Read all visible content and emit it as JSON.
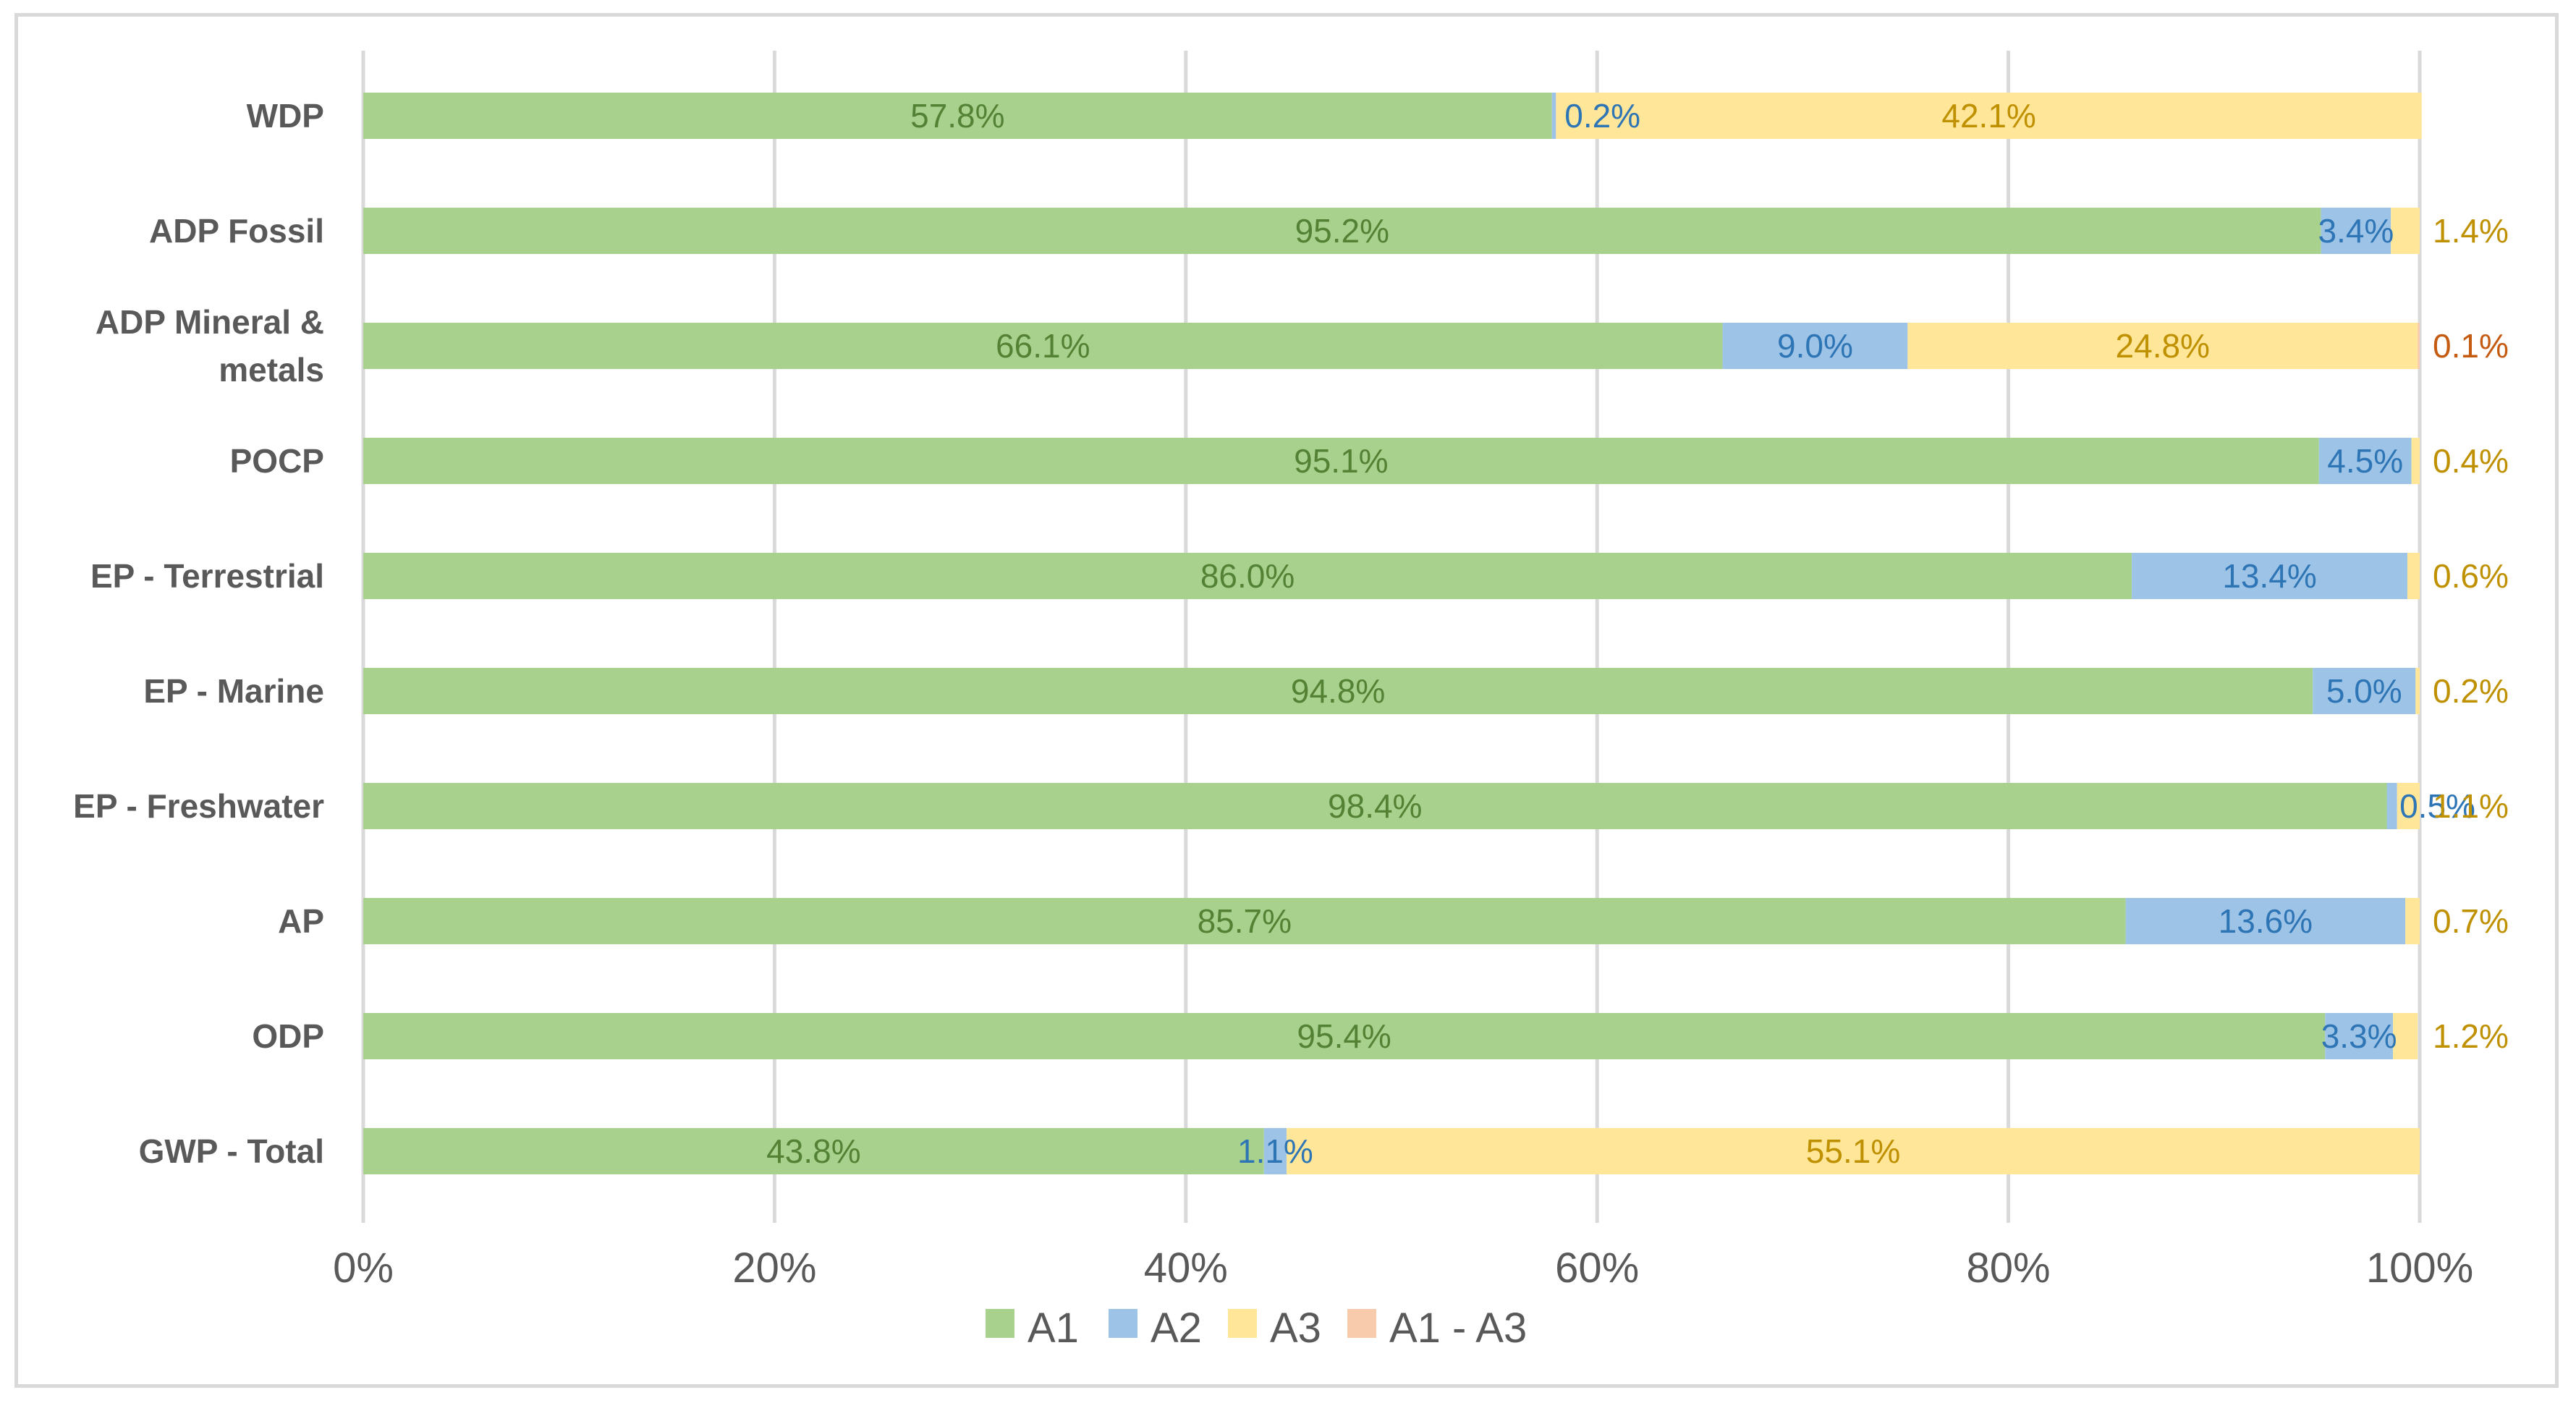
{
  "chart_data": {
    "type": "bar",
    "orientation": "horizontal",
    "stacked": "percent",
    "title": "",
    "xlabel": "",
    "ylabel": "",
    "xlim": [
      0,
      100
    ],
    "grid": true,
    "legend_position": "bottom",
    "x_ticks": [
      "0%",
      "20%",
      "40%",
      "60%",
      "80%",
      "100%"
    ],
    "categories": [
      "WDP",
      "ADP Fossil",
      "ADP Mineral & metals",
      "POCP",
      "EP - Terrestrial",
      "EP - Marine",
      "EP - Freshwater",
      "AP",
      "ODP",
      "GWP - Total"
    ],
    "category_lines": [
      [
        "WDP"
      ],
      [
        "ADP Fossil"
      ],
      [
        "ADP Mineral &",
        "metals"
      ],
      [
        "POCP"
      ],
      [
        "EP - Terrestrial"
      ],
      [
        "EP - Marine"
      ],
      [
        "EP - Freshwater"
      ],
      [
        "AP"
      ],
      [
        "ODP"
      ],
      [
        "GWP - Total"
      ]
    ],
    "series": [
      {
        "name": "A1",
        "color": "#a9d18e",
        "label_color": "#548235",
        "values": [
          57.8,
          95.2,
          66.1,
          95.1,
          86.0,
          94.8,
          98.4,
          85.7,
          95.4,
          43.8
        ],
        "labels": [
          "57.8%",
          "95.2%",
          "66.1%",
          "95.1%",
          "86.0%",
          "94.8%",
          "98.4%",
          "85.7%",
          "95.4%",
          "43.8%"
        ]
      },
      {
        "name": "A2",
        "color": "#9dc3e6",
        "label_color": "#2e75b6",
        "values": [
          0.2,
          3.4,
          9.0,
          4.5,
          13.4,
          5.0,
          0.5,
          13.6,
          3.3,
          1.1
        ],
        "labels": [
          "0.2%",
          "3.4%",
          "9.0%",
          "4.5%",
          "13.4%",
          "5.0%",
          "0.5%",
          "13.6%",
          "3.3%",
          "1.1%"
        ]
      },
      {
        "name": "A3",
        "color": "#ffe699",
        "label_color": "#bf9000",
        "values": [
          42.1,
          1.4,
          24.8,
          0.4,
          0.6,
          0.2,
          1.1,
          0.7,
          1.2,
          55.1
        ],
        "labels": [
          "42.1%",
          "1.4%",
          "24.8%",
          "0.4%",
          "0.6%",
          "0.2%",
          "1.1%",
          "0.7%",
          "1.2%",
          "55.1%"
        ]
      },
      {
        "name": "A1 - A3",
        "color": "#f8cbad",
        "label_color": "#c55a11",
        "values": [
          0,
          0,
          0.1,
          0,
          0,
          0,
          0,
          0,
          0,
          0
        ],
        "labels": [
          "",
          "",
          "0.1%",
          "",
          "",
          "",
          "",
          "",
          "",
          ""
        ]
      }
    ]
  }
}
